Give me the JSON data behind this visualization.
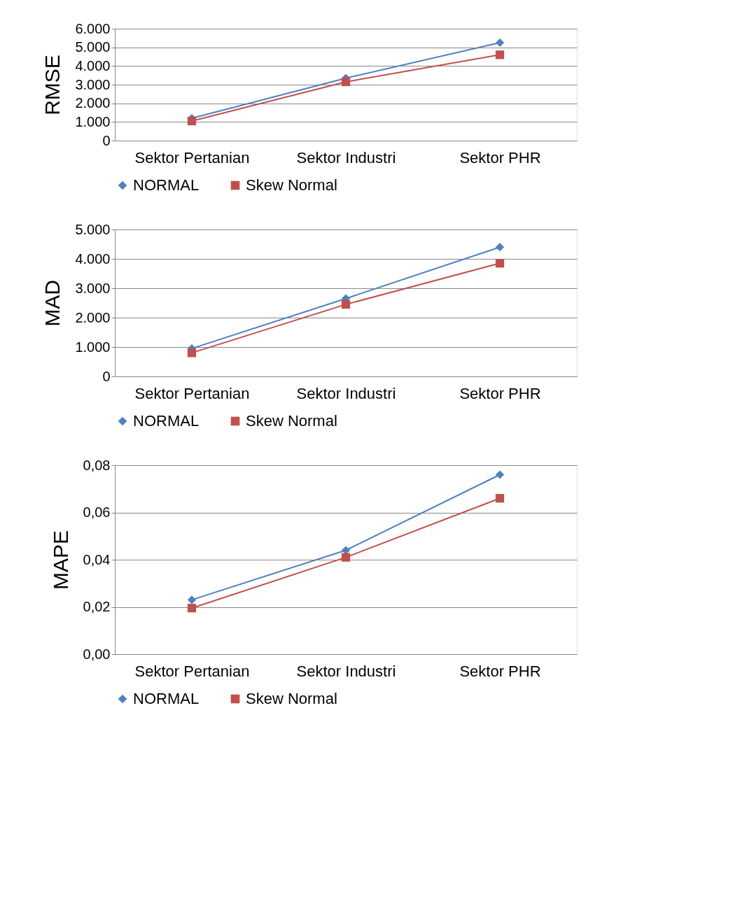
{
  "chart_data": [
    {
      "type": "line",
      "ylabel": "RMSE",
      "categories": [
        "Sektor Pertanian",
        "Sektor Industri",
        "Sektor PHR"
      ],
      "ylim": [
        0,
        6000
      ],
      "yticks": [
        0,
        {
          "value": 1000,
          "label": "1.000"
        },
        {
          "value": 2000,
          "label": "2.000"
        },
        {
          "value": 3000,
          "label": "3.000"
        },
        {
          "value": 4000,
          "label": "4.000"
        },
        {
          "value": 5000,
          "label": "5.000"
        },
        {
          "value": 6000,
          "label": "6.000"
        }
      ],
      "grid": "y",
      "legend": "bottom",
      "series": [
        {
          "name": "NORMAL",
          "color": "#4f81bd",
          "marker": "diamond",
          "values": [
            1200,
            3350,
            5250
          ]
        },
        {
          "name": "Skew Normal",
          "color": "#c0504d",
          "marker": "square",
          "values": [
            1050,
            3150,
            4600
          ]
        }
      ]
    },
    {
      "type": "line",
      "ylabel": "MAD",
      "categories": [
        "Sektor Pertanian",
        "Sektor Industri",
        "Sektor PHR"
      ],
      "ylim": [
        0,
        5000
      ],
      "yticks": [
        0,
        {
          "value": 1000,
          "label": "1.000"
        },
        {
          "value": 2000,
          "label": "2.000"
        },
        {
          "value": 3000,
          "label": "3.000"
        },
        {
          "value": 4000,
          "label": "4.000"
        },
        {
          "value": 5000,
          "label": "5.000"
        }
      ],
      "grid": "y",
      "legend": "bottom",
      "series": [
        {
          "name": "NORMAL",
          "color": "#4f81bd",
          "marker": "diamond",
          "values": [
            950,
            2650,
            4400
          ]
        },
        {
          "name": "Skew Normal",
          "color": "#c0504d",
          "marker": "square",
          "values": [
            800,
            2450,
            3850
          ]
        }
      ]
    },
    {
      "type": "line",
      "ylabel": "MAPE",
      "categories": [
        "Sektor Pertanian",
        "Sektor Industri",
        "Sektor PHR"
      ],
      "ylim": [
        0,
        0.08
      ],
      "yticks": [
        {
          "value": 0,
          "label": "0,00"
        },
        {
          "value": 0.02,
          "label": "0,02"
        },
        {
          "value": 0.04,
          "label": "0,04"
        },
        {
          "value": 0.06,
          "label": "0,06"
        },
        {
          "value": 0.08,
          "label": "0,08"
        }
      ],
      "grid": "y",
      "legend": "bottom",
      "series": [
        {
          "name": "NORMAL",
          "color": "#4f81bd",
          "marker": "diamond",
          "values": [
            0.023,
            0.044,
            0.076
          ]
        },
        {
          "name": "Skew Normal",
          "color": "#c0504d",
          "marker": "square",
          "values": [
            0.0195,
            0.041,
            0.066
          ]
        }
      ]
    }
  ]
}
